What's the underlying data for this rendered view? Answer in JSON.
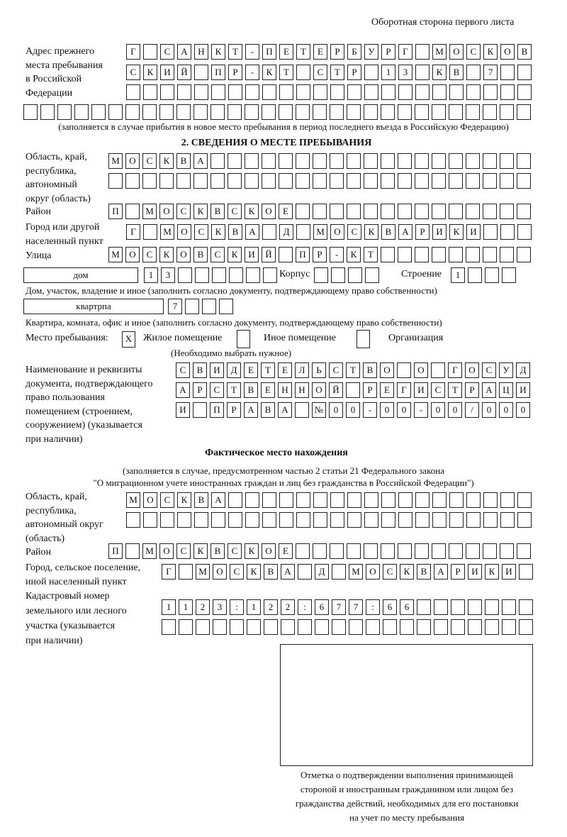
{
  "header_note": "Оборотная сторона первого листа",
  "previous_address": {
    "label": "Адрес прежнего\nместа пребывания\nв Российской\nФедерации",
    "rows": [
      "Г САНКТ-ПЕТЕРБУРГ МОСКОВ",
      "СКИЙ ПР-КТ СТР 13 КВ 7",
      "",
      ""
    ],
    "note": "(заполняется в случае прибытия в новое место пребывания в период последнего въезда в Российскую Федерацию)"
  },
  "section2": {
    "title": "2. СВЕДЕНИЯ О МЕСТЕ ПРЕБЫВАНИЯ",
    "region_label": "Область, край,\nреспублика,\nавтономный\nокруг (область)",
    "region_rows": [
      "МОСКВА",
      ""
    ],
    "district_label": "Район",
    "district": "П МОСКВСКОЕ",
    "city_label": "Город или другой\nнаселенный пункт",
    "city": "Г МОСКВА Д МОСКВАРИКИ",
    "street_label": "Улица",
    "street": "МОСКОВСКИЙ ПР-КТ",
    "house_type": "дом",
    "house_number": "13",
    "korpus_label": "Корпус",
    "korpus": "",
    "building_label": "Строение",
    "building": "1",
    "house_caption": "Дом, участок, владение и иное (заполнить согласно документу, подтверждающему право собственности)",
    "apartment_type": "квартрпа",
    "apartment_number": "7",
    "apartment_caption": "Квартира, комната, офис и иное (заполнить согласно документу, подтверждающему право собственности)",
    "stay_place_label": "Место пребывания:",
    "stay_options": [
      {
        "label": "Жилое помещение",
        "mark": "X"
      },
      {
        "label": "Иное помещение",
        "mark": ""
      },
      {
        "label": "Организация",
        "mark": ""
      }
    ],
    "stay_hint": "(Необходимо выбрать нужное)",
    "document_label": "Наименование и реквизиты\nдокумента, подтверждающего\nправо пользования\nпомещением (строением,\nсооружением) (указывается\nпри наличии)",
    "document_rows": [
      "СВИДЕТЕЛЬСТВО О ГОСУД",
      "АРСТВЕННОЙ РЕГИСТРАЦИ",
      "И ПРАВА №00-00-00/000"
    ]
  },
  "actual_location": {
    "title": "Фактическое место нахождения",
    "note_line1": "(заполняется в случае, предусмотренном частью 2 статьи 21 Федерального закона",
    "note_line2": "\"О миграционном учете иностранных граждан и лиц без гражданства в Российской Федерации\")",
    "region_label": "Область, край,\nреспублика,\nавтономный округ\n(область)",
    "region_rows": [
      "МОСКВА",
      ""
    ],
    "district_label": "Район",
    "district": "П МОСКВСКОЕ",
    "city_label": "Город, сельское поселение,\nиной населенный пункт",
    "city": "Г МОСКВА Д МОСКВАРИКИ",
    "cadastral_label": "Кадастровый номер\nземельного или лесного\nучастка (указывается\nпри наличии)",
    "cadastral_rows": [
      "1123:122:677:66",
      ""
    ]
  },
  "confirmation_caption": "Отметка о подтверждении выполнения принимающей\nстороной и иностранным гражданином или лицом без\nгражданства действий, необходимых для его постановки\nна учет по месту пребывания"
}
